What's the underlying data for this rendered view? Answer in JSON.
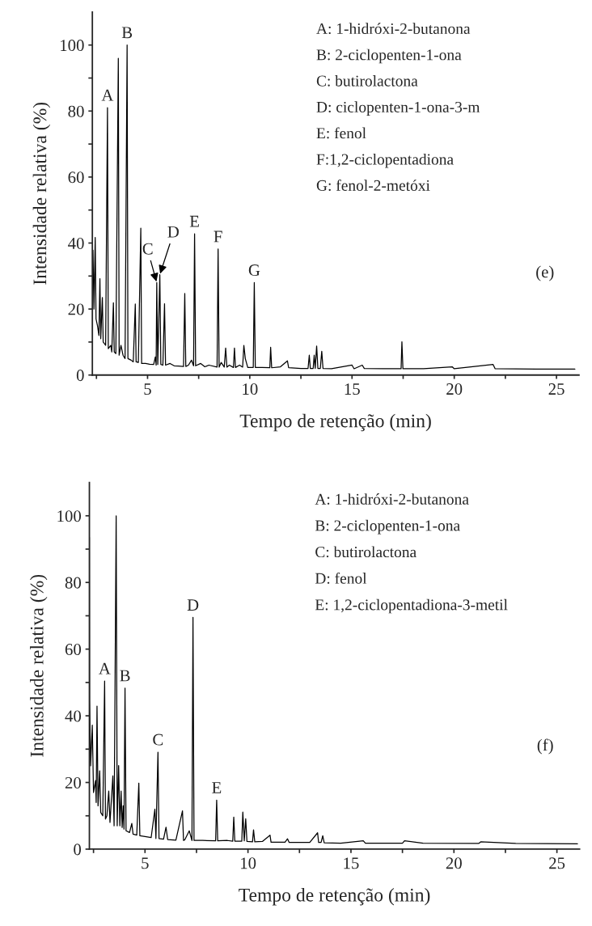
{
  "chart_data": [
    {
      "type": "line",
      "title": "(e)",
      "xlabel": "Tempo de retenção (min)",
      "ylabel": "Intensidade relativa (%)",
      "xlim": [
        2.3,
        26.1
      ],
      "ylim": [
        0,
        110
      ],
      "xticks": [
        {
          "value": 2.5,
          "label": null
        },
        5,
        {
          "value": 7.5,
          "label": null
        },
        10,
        {
          "value": 12.5,
          "label": null
        },
        15,
        {
          "value": 17.5,
          "label": null
        },
        20,
        {
          "value": 22.5,
          "label": null
        },
        25
      ],
      "yticks": [
        0,
        {
          "value": 10,
          "label": null
        },
        20,
        {
          "value": 30,
          "label": null
        },
        40,
        {
          "value": 50,
          "label": null
        },
        60,
        {
          "value": 70,
          "label": null
        },
        80,
        {
          "value": 90,
          "label": null
        },
        100
      ],
      "grid": false,
      "legend": false,
      "marker": "none",
      "line_style": "solid",
      "series": [
        {
          "color": "#000000",
          "x": [
            2.33,
            2.38,
            2.44,
            2.48,
            2.55,
            2.62,
            2.67,
            2.71,
            2.79,
            2.83,
            2.95,
            3.04,
            3.08,
            3.2,
            3.25,
            3.33,
            3.37,
            3.45,
            3.57,
            3.61,
            3.7,
            3.8,
            3.9,
            4.0,
            4.04,
            4.2,
            4.3,
            4.4,
            4.44,
            4.55,
            4.67,
            4.71,
            4.9,
            5.1,
            5.3,
            5.38,
            5.42,
            5.45,
            5.5,
            5.6,
            5.65,
            5.75,
            5.83,
            5.88,
            6.1,
            6.3,
            6.5,
            6.76,
            6.82,
            6.87,
            7.0,
            7.15,
            7.25,
            7.3,
            7.35,
            7.6,
            7.8,
            8.0,
            8.4,
            8.45,
            8.5,
            8.6,
            8.75,
            8.82,
            8.88,
            9.0,
            9.2,
            9.25,
            9.3,
            9.5,
            9.65,
            9.71,
            9.78,
            9.9,
            10.17,
            10.22,
            10.27,
            10.6,
            10.98,
            11.02,
            11.07,
            11.5,
            11.84,
            11.9,
            12.5,
            12.85,
            12.91,
            12.96,
            13.1,
            13.15,
            13.2,
            13.27,
            13.33,
            13.45,
            13.52,
            13.58,
            14.0,
            15.0,
            15.1,
            15.5,
            15.6,
            16.5,
            17.4,
            17.44,
            17.49,
            18.5,
            19.9,
            20.0,
            21.9,
            22.0,
            24.0,
            25.9
          ],
          "values": [
            37.8,
            20,
            41.7,
            17,
            15,
            12,
            29.2,
            11,
            23.5,
            10,
            9,
            81,
            8,
            9,
            7,
            21.9,
            7,
            6.5,
            96,
            6,
            9,
            6,
            5,
            100,
            5,
            4.5,
            4,
            21.5,
            4,
            3.8,
            44.5,
            3.5,
            3.5,
            3.3,
            3.2,
            5.5,
            3,
            28,
            3.2,
            30.4,
            3.2,
            3,
            21.6,
            3,
            3.5,
            2.8,
            2.7,
            2.6,
            24.7,
            2.6,
            3,
            4.5,
            2.8,
            42.8,
            2.8,
            3.5,
            2.5,
            3,
            2.4,
            38.2,
            2.4,
            3.8,
            2.4,
            8.2,
            2.4,
            3,
            2.3,
            8.2,
            2.3,
            3,
            2.4,
            9,
            5,
            2.3,
            2.3,
            28,
            2.3,
            2.3,
            2.2,
            8.4,
            2.2,
            2.5,
            4.3,
            2.2,
            2,
            2,
            6,
            2,
            2,
            6,
            2,
            8.8,
            2,
            2,
            7.2,
            2,
            1.9,
            3,
            1.9,
            3,
            2,
            1.9,
            1.9,
            10.1,
            1.9,
            1.9,
            2.5,
            1.9,
            3.2,
            1.9,
            1.8,
            1.8
          ]
        }
      ],
      "annotations": [
        {
          "text": "A",
          "x": 3.04,
          "y": 81
        },
        {
          "text": "B",
          "x": 4.0,
          "y": 100
        },
        {
          "text": "C",
          "x": 5.45,
          "y": 28
        },
        {
          "text": "D",
          "x": 5.6,
          "y": 30.4
        },
        {
          "text": "E",
          "x": 7.3,
          "y": 42.8
        },
        {
          "text": "F",
          "x": 8.45,
          "y": 38.2
        },
        {
          "text": "G",
          "x": 10.22,
          "y": 28
        },
        "A: 1-hidróxi-2-butanona",
        "B: 2-ciclopenten-1-ona",
        "C: butirolactona",
        "D: ciclopenten-1-ona-3-m",
        "E: fenol",
        "F:1,2-ciclopentadiona",
        "G: fenol-2-metóxi"
      ]
    },
    {
      "type": "line",
      "title": "(f)",
      "xlabel": "Tempo de retenção (min)",
      "ylabel": "Intensidade relativa (%)",
      "xlim": [
        2.3,
        26.1
      ],
      "ylim": [
        0,
        110
      ],
      "xticks": [
        {
          "value": 2.5,
          "label": null
        },
        5,
        {
          "value": 7.5,
          "label": null
        },
        10,
        {
          "value": 12.5,
          "label": null
        },
        15,
        {
          "value": 17.5,
          "label": null
        },
        20,
        {
          "value": 22.5,
          "label": null
        },
        25
      ],
      "yticks": [
        0,
        {
          "value": 10,
          "label": null
        },
        20,
        {
          "value": 30,
          "label": null
        },
        40,
        {
          "value": 50,
          "label": null
        },
        60,
        {
          "value": 70,
          "label": null
        },
        80,
        {
          "value": 90,
          "label": null
        },
        100
      ],
      "grid": false,
      "legend": false,
      "marker": "none",
      "line_style": "solid",
      "series": [
        {
          "color": "#000000",
          "x": [
            2.3,
            2.31,
            2.36,
            2.44,
            2.5,
            2.6,
            2.63,
            2.67,
            2.72,
            2.8,
            2.85,
            2.95,
            3.04,
            3.08,
            3.15,
            3.24,
            3.3,
            3.44,
            3.5,
            3.6,
            3.65,
            3.72,
            3.78,
            3.84,
            3.89,
            3.94,
            3.98,
            4.03,
            4.08,
            4.25,
            4.36,
            4.42,
            4.6,
            4.7,
            4.75,
            5.0,
            5.3,
            5.48,
            5.53,
            5.63,
            5.68,
            5.9,
            6.02,
            6.1,
            6.5,
            6.82,
            6.87,
            6.93,
            7.15,
            7.28,
            7.33,
            7.38,
            7.8,
            8.43,
            8.48,
            8.53,
            9.0,
            9.26,
            9.31,
            9.36,
            9.7,
            9.75,
            9.82,
            9.89,
            9.95,
            10.22,
            10.27,
            10.33,
            10.7,
            11.07,
            11.12,
            11.8,
            11.92,
            12.0,
            13.0,
            13.38,
            13.43,
            13.55,
            13.63,
            13.7,
            14.5,
            15.6,
            15.7,
            17.5,
            17.6,
            18.5,
            21.2,
            21.3,
            23.0,
            26.0
          ],
          "values": [
            93.5,
            44.5,
            25,
            37.2,
            17,
            20.6,
            14,
            42.9,
            13,
            23.5,
            11,
            10,
            50.4,
            9,
            10,
            17.4,
            8,
            22,
            7,
            100,
            7,
            25.1,
            7,
            17.4,
            6.5,
            13,
            6,
            48.3,
            5.5,
            5,
            7.7,
            4.5,
            4.2,
            19.8,
            4,
            3.8,
            3.5,
            12,
            3.2,
            29.1,
            3.2,
            3,
            6.6,
            2.9,
            2.7,
            11.5,
            2.6,
            2.8,
            5.5,
            2.6,
            69.5,
            2.6,
            2.6,
            2.5,
            14.7,
            2.5,
            2.6,
            2.4,
            9.6,
            2.4,
            2.4,
            11.1,
            2.5,
            9.1,
            2.3,
            2.2,
            5.8,
            2.2,
            2.3,
            4.2,
            2.1,
            2.1,
            3.1,
            2,
            2,
            4.9,
            2,
            2,
            4,
            1.9,
            1.8,
            2.5,
            1.8,
            1.8,
            2.5,
            1.8,
            1.7,
            2.2,
            1.7,
            1.6
          ]
        }
      ],
      "annotations": [
        {
          "text": "A",
          "x": 3.04,
          "y": 50.4
        },
        {
          "text": "B",
          "x": 4.03,
          "y": 48.3
        },
        {
          "text": "C",
          "x": 5.63,
          "y": 29.1
        },
        {
          "text": "D",
          "x": 7.33,
          "y": 69.5
        },
        {
          "text": "E",
          "x": 8.48,
          "y": 14.7
        },
        "A: 1-hidróxi-2-butanona",
        "B: 2-ciclopenten-1-ona",
        "C: butirolactona",
        "D: fenol",
        "E: 1,2-ciclopentadiona-3-metil"
      ]
    }
  ]
}
